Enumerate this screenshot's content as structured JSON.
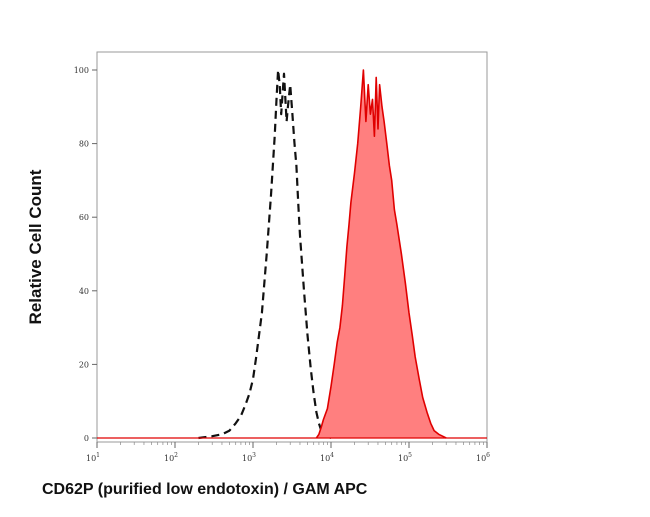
{
  "chart_data": {
    "type": "area",
    "title": "",
    "xlabel": "CD62P (purified low endotoxin) / GAM APC",
    "ylabel": "Relative Cell Count",
    "x_scale": "log",
    "xlim": [
      10,
      1000000
    ],
    "ylim": [
      0,
      100
    ],
    "x_ticks": [
      10,
      100,
      1000,
      10000,
      100000,
      1000000
    ],
    "x_tick_labels": [
      {
        "base": "10",
        "exp": "1"
      },
      {
        "base": "10",
        "exp": "2"
      },
      {
        "base": "10",
        "exp": "3"
      },
      {
        "base": "10",
        "exp": "4"
      },
      {
        "base": "10",
        "exp": "5"
      },
      {
        "base": "10",
        "exp": "6"
      }
    ],
    "y_ticks": [
      0,
      20,
      40,
      60,
      80,
      100
    ],
    "y_tick_labels": [
      "0",
      "20",
      "40",
      "60",
      "80",
      "100"
    ],
    "grid": false,
    "legend": "none",
    "series": [
      {
        "style": "dashed-line",
        "color": "#111111",
        "x": [
          200,
          300,
          400,
          500,
          600,
          700,
          800,
          900,
          1000,
          1100,
          1300,
          1500,
          1700,
          1900,
          2000,
          2100,
          2200,
          2300,
          2400,
          2500,
          2600,
          2700,
          2800,
          3000,
          3200,
          3400,
          3600,
          3800,
          4000,
          4500,
          5000,
          5500,
          6000,
          6500,
          7000,
          7500,
          8000,
          9000,
          10000
        ],
        "y": [
          0,
          0.5,
          1,
          2,
          4,
          6,
          9,
          12,
          16,
          22,
          34,
          50,
          66,
          82,
          92,
          100,
          96,
          88,
          94,
          99,
          92,
          86,
          90,
          96,
          88,
          80,
          74,
          64,
          55,
          40,
          28,
          19,
          12,
          7,
          4,
          2,
          1,
          0.5,
          0
        ]
      },
      {
        "style": "filled-area",
        "color": "#e00000",
        "fill": "#ff7f7f",
        "x": [
          6500,
          7000,
          7500,
          8000,
          9000,
          10000,
          11000,
          12000,
          13000,
          14000,
          15000,
          16000,
          17000,
          18000,
          20000,
          22000,
          24000,
          26000,
          28000,
          30000,
          32000,
          34000,
          36000,
          38000,
          40000,
          42000,
          45000,
          48000,
          52000,
          56000,
          60000,
          65000,
          70000,
          80000,
          90000,
          100000,
          110000,
          120000,
          135000,
          150000,
          170000,
          190000,
          210000,
          240000,
          270000,
          300000
        ],
        "y": [
          0,
          1,
          3,
          5,
          8,
          14,
          20,
          26,
          30,
          36,
          44,
          52,
          58,
          64,
          72,
          80,
          90,
          100,
          86,
          96,
          88,
          92,
          82,
          98,
          84,
          96,
          90,
          86,
          80,
          74,
          70,
          62,
          58,
          50,
          42,
          34,
          28,
          22,
          16,
          11,
          7,
          4,
          2,
          1,
          0.5,
          0
        ]
      }
    ]
  }
}
